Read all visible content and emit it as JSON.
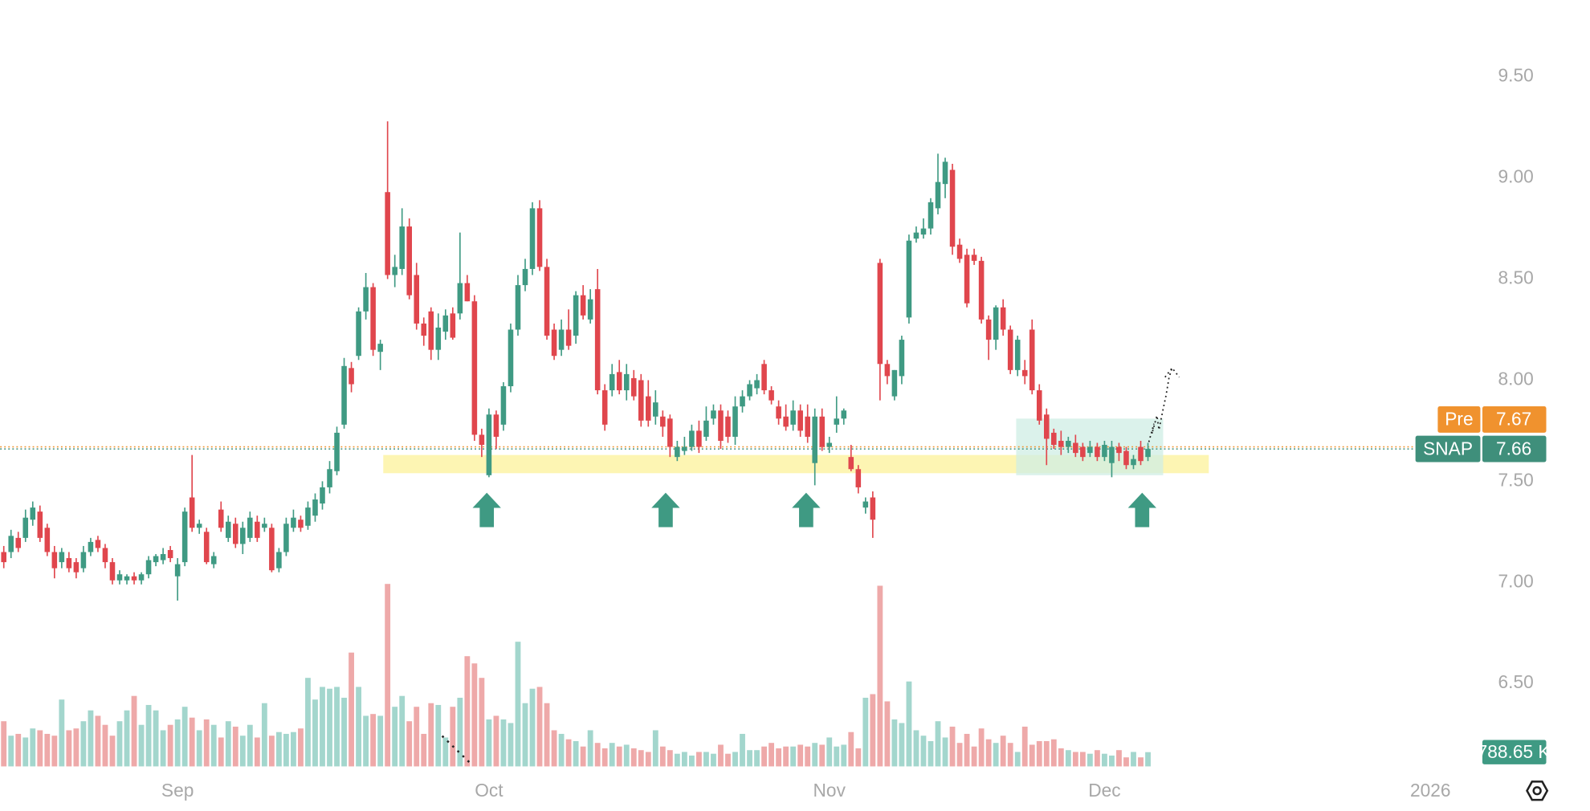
{
  "chart_data": {
    "type": "candlestick",
    "xlim": [
      -0.5,
      202.5
    ],
    "xticks": [
      {
        "value": 24,
        "label": "Sep"
      },
      {
        "value": 67,
        "label": "Oct"
      },
      {
        "value": 114,
        "label": "Nov"
      },
      {
        "value": 152,
        "label": "Dec"
      },
      {
        "value": 197,
        "label": "2026"
      }
    ],
    "ylim": [
      6.09,
      9.88
    ],
    "yticks": [
      {
        "value": 6.5,
        "label": "6.50"
      },
      {
        "value": 7,
        "label": "7.00"
      },
      {
        "value": 7.5,
        "label": "7.50"
      },
      {
        "value": 8,
        "label": "8.00"
      },
      {
        "value": 8.5,
        "label": "8.50"
      },
      {
        "value": 9,
        "label": "9.00"
      },
      {
        "value": 9.5,
        "label": "9.50"
      }
    ],
    "grid": false,
    "up_color": "#3f9a83",
    "down_color": "#e0464d",
    "volume_up_color": "#a3d6cd",
    "volume_down_color": "#eea9a9",
    "ohlc": [
      [
        7.15,
        7.18,
        7.07,
        7.1
      ],
      [
        7.15,
        7.26,
        7.12,
        7.23
      ],
      [
        7.22,
        7.25,
        7.15,
        7.17
      ],
      [
        7.22,
        7.36,
        7.2,
        7.32
      ],
      [
        7.31,
        7.4,
        7.28,
        7.37
      ],
      [
        7.35,
        7.38,
        7.2,
        7.22
      ],
      [
        7.27,
        7.29,
        7.13,
        7.15
      ],
      [
        7.15,
        7.18,
        7.02,
        7.07
      ],
      [
        7.1,
        7.17,
        7.07,
        7.15
      ],
      [
        7.12,
        7.15,
        7.05,
        7.07
      ],
      [
        7.1,
        7.12,
        7.02,
        7.05
      ],
      [
        7.07,
        7.18,
        7.05,
        7.15
      ],
      [
        7.15,
        7.22,
        7.13,
        7.2
      ],
      [
        7.21,
        7.23,
        7.15,
        7.17
      ],
      [
        7.17,
        7.19,
        7.07,
        7.1
      ],
      [
        7.1,
        7.12,
        6.99,
        7.01
      ],
      [
        7.01,
        7.06,
        6.99,
        7.04
      ],
      [
        7.01,
        7.04,
        6.99,
        7.03
      ],
      [
        7.03,
        7.05,
        6.99,
        7.01
      ],
      [
        7.01,
        7.05,
        6.99,
        7.04
      ],
      [
        7.04,
        7.13,
        7.02,
        7.11
      ],
      [
        7.1,
        7.14,
        7.08,
        7.13
      ],
      [
        7.11,
        7.17,
        7.09,
        7.14
      ],
      [
        7.16,
        7.18,
        7.1,
        7.12
      ],
      [
        7.03,
        7.12,
        6.91,
        7.09
      ],
      [
        7.1,
        7.37,
        7.08,
        7.35
      ],
      [
        7.42,
        7.63,
        7.25,
        7.27
      ],
      [
        7.27,
        7.31,
        7.24,
        7.29
      ],
      [
        7.25,
        7.27,
        7.09,
        7.1
      ],
      [
        7.09,
        7.15,
        7.07,
        7.13
      ],
      [
        7.36,
        7.4,
        7.25,
        7.27
      ],
      [
        7.22,
        7.33,
        7.2,
        7.3
      ],
      [
        7.29,
        7.32,
        7.17,
        7.19
      ],
      [
        7.19,
        7.3,
        7.14,
        7.27
      ],
      [
        7.22,
        7.35,
        7.2,
        7.32
      ],
      [
        7.3,
        7.33,
        7.2,
        7.22
      ],
      [
        7.27,
        7.32,
        7.25,
        7.29
      ],
      [
        7.27,
        7.29,
        7.05,
        7.06
      ],
      [
        7.07,
        7.17,
        7.05,
        7.15
      ],
      [
        7.15,
        7.32,
        7.13,
        7.29
      ],
      [
        7.27,
        7.36,
        7.25,
        7.32
      ],
      [
        7.31,
        7.33,
        7.25,
        7.27
      ],
      [
        7.28,
        7.4,
        7.26,
        7.37
      ],
      [
        7.33,
        7.44,
        7.3,
        7.41
      ],
      [
        7.39,
        7.5,
        7.36,
        7.47
      ],
      [
        7.47,
        7.6,
        7.44,
        7.56
      ],
      [
        7.55,
        7.77,
        7.53,
        7.74
      ],
      [
        7.78,
        8.11,
        7.76,
        8.07
      ],
      [
        8.06,
        8.09,
        7.94,
        7.98
      ],
      [
        8.12,
        8.36,
        8.1,
        8.34
      ],
      [
        8.34,
        8.53,
        8.3,
        8.46
      ],
      [
        8.46,
        8.48,
        8.12,
        8.15
      ],
      [
        8.14,
        8.2,
        8.05,
        8.18
      ],
      [
        8.93,
        9.28,
        8.5,
        8.52
      ],
      [
        8.52,
        8.62,
        8.46,
        8.56
      ],
      [
        8.55,
        8.85,
        8.52,
        8.76
      ],
      [
        8.76,
        8.8,
        8.4,
        8.42
      ],
      [
        8.52,
        8.58,
        8.25,
        8.28
      ],
      [
        8.28,
        8.31,
        8.17,
        8.22
      ],
      [
        8.34,
        8.36,
        8.1,
        8.15
      ],
      [
        8.15,
        8.33,
        8.1,
        8.26
      ],
      [
        8.24,
        8.35,
        8.2,
        8.32
      ],
      [
        8.33,
        8.36,
        8.2,
        8.21
      ],
      [
        8.33,
        8.73,
        8.3,
        8.48
      ],
      [
        8.48,
        8.52,
        8.39,
        8.39
      ],
      [
        8.39,
        8.42,
        7.7,
        7.73
      ],
      [
        7.73,
        7.76,
        7.62,
        7.68
      ],
      [
        7.53,
        7.86,
        7.52,
        7.83
      ],
      [
        7.83,
        7.85,
        7.66,
        7.72
      ],
      [
        7.78,
        7.99,
        7.75,
        7.97
      ],
      [
        7.97,
        8.28,
        7.94,
        8.25
      ],
      [
        8.25,
        8.52,
        8.22,
        8.47
      ],
      [
        8.47,
        8.6,
        8.44,
        8.55
      ],
      [
        8.55,
        8.88,
        8.52,
        8.85
      ],
      [
        8.85,
        8.89,
        8.54,
        8.56
      ],
      [
        8.56,
        8.6,
        8.2,
        8.22
      ],
      [
        8.25,
        8.28,
        8.1,
        8.12
      ],
      [
        8.15,
        8.3,
        8.12,
        8.25
      ],
      [
        8.25,
        8.35,
        8.15,
        8.17
      ],
      [
        8.22,
        8.44,
        8.18,
        8.42
      ],
      [
        8.42,
        8.47,
        8.3,
        8.32
      ],
      [
        8.3,
        8.45,
        8.28,
        8.4
      ],
      [
        8.45,
        8.55,
        7.93,
        7.95
      ],
      [
        7.95,
        7.98,
        7.75,
        7.78
      ],
      [
        7.95,
        8.08,
        7.92,
        8.03
      ],
      [
        8.04,
        8.1,
        7.93,
        7.95
      ],
      [
        7.95,
        8.08,
        7.9,
        8.03
      ],
      [
        8.01,
        8.05,
        7.9,
        7.92
      ],
      [
        8.0,
        8.03,
        7.77,
        7.8
      ],
      [
        7.92,
        8.0,
        7.77,
        7.8
      ],
      [
        7.82,
        7.95,
        7.78,
        7.89
      ],
      [
        7.82,
        7.85,
        7.72,
        7.77
      ],
      [
        7.81,
        7.83,
        7.62,
        7.67
      ],
      [
        7.62,
        7.7,
        7.6,
        7.67
      ],
      [
        7.65,
        7.72,
        7.63,
        7.67
      ],
      [
        7.67,
        7.78,
        7.65,
        7.75
      ],
      [
        7.75,
        7.8,
        7.64,
        7.67
      ],
      [
        7.72,
        7.87,
        7.7,
        7.8
      ],
      [
        7.81,
        7.88,
        7.78,
        7.85
      ],
      [
        7.85,
        7.88,
        7.66,
        7.7
      ],
      [
        7.82,
        7.85,
        7.69,
        7.72
      ],
      [
        7.72,
        7.92,
        7.68,
        7.87
      ],
      [
        7.87,
        7.95,
        7.84,
        7.92
      ],
      [
        7.92,
        8.0,
        7.9,
        7.98
      ],
      [
        7.96,
        8.03,
        7.93,
        8.0
      ],
      [
        8.08,
        8.1,
        7.93,
        7.95
      ],
      [
        7.95,
        7.97,
        7.88,
        7.9
      ],
      [
        7.87,
        7.9,
        7.78,
        7.81
      ],
      [
        7.82,
        7.88,
        7.75,
        7.77
      ],
      [
        7.78,
        7.9,
        7.75,
        7.85
      ],
      [
        7.85,
        7.88,
        7.72,
        7.75
      ],
      [
        7.82,
        7.88,
        7.69,
        7.72
      ],
      [
        7.59,
        7.86,
        7.48,
        7.82
      ],
      [
        7.82,
        7.86,
        7.65,
        7.67
      ],
      [
        7.67,
        7.72,
        7.64,
        7.69
      ],
      [
        7.78,
        7.92,
        7.74,
        7.81
      ],
      [
        7.81,
        7.86,
        7.78,
        7.85
      ],
      [
        7.62,
        7.68,
        7.55,
        7.56
      ],
      [
        7.56,
        7.58,
        7.44,
        7.47
      ],
      [
        7.37,
        7.42,
        7.34,
        7.4
      ],
      [
        7.42,
        7.45,
        7.22,
        7.31
      ],
      [
        8.58,
        8.6,
        7.9,
        8.08
      ],
      [
        8.08,
        8.1,
        7.98,
        8.02
      ],
      [
        7.92,
        8.05,
        7.9,
        8.05
      ],
      [
        8.02,
        8.22,
        7.98,
        8.2
      ],
      [
        8.31,
        8.72,
        8.28,
        8.69
      ],
      [
        8.7,
        8.76,
        8.68,
        8.73
      ],
      [
        8.72,
        8.8,
        8.7,
        8.75
      ],
      [
        8.75,
        8.9,
        8.72,
        8.88
      ],
      [
        8.85,
        9.12,
        8.82,
        8.98
      ],
      [
        8.97,
        9.1,
        8.9,
        9.08
      ],
      [
        9.04,
        9.07,
        8.62,
        8.66
      ],
      [
        8.67,
        8.7,
        8.58,
        8.6
      ],
      [
        8.62,
        8.65,
        8.36,
        8.38
      ],
      [
        8.62,
        8.65,
        8.57,
        8.59
      ],
      [
        8.59,
        8.61,
        8.28,
        8.3
      ],
      [
        8.3,
        8.32,
        8.1,
        8.2
      ],
      [
        8.2,
        8.37,
        8.15,
        8.36
      ],
      [
        8.36,
        8.4,
        8.22,
        8.25
      ],
      [
        8.25,
        8.27,
        8.03,
        8.05
      ],
      [
        8.05,
        8.22,
        8.02,
        8.2
      ],
      [
        8.05,
        8.1,
        7.98,
        8.02
      ],
      [
        8.25,
        8.3,
        7.93,
        7.95
      ],
      [
        7.95,
        7.98,
        7.78,
        7.8
      ],
      [
        7.83,
        7.86,
        7.58,
        7.71
      ],
      [
        7.74,
        7.76,
        7.66,
        7.68
      ],
      [
        7.7,
        7.75,
        7.63,
        7.67
      ],
      [
        7.67,
        7.72,
        7.64,
        7.7
      ],
      [
        7.69,
        7.73,
        7.62,
        7.64
      ],
      [
        7.67,
        7.69,
        7.6,
        7.62
      ],
      [
        7.64,
        7.7,
        7.62,
        7.67
      ],
      [
        7.67,
        7.69,
        7.6,
        7.62
      ],
      [
        7.62,
        7.7,
        7.6,
        7.68
      ],
      [
        7.59,
        7.7,
        7.52,
        7.67
      ],
      [
        7.67,
        7.69,
        7.6,
        7.64
      ],
      [
        7.65,
        7.67,
        7.56,
        7.58
      ],
      [
        7.58,
        7.63,
        7.56,
        7.61
      ],
      [
        7.67,
        7.7,
        7.58,
        7.6
      ],
      [
        7.62,
        7.69,
        7.6,
        7.66
      ]
    ],
    "volumes": [
      2500,
      1700,
      1800,
      1600,
      2100,
      2000,
      1800,
      1700,
      3700,
      2000,
      2100,
      2500,
      3100,
      2800,
      2300,
      1700,
      2500,
      3100,
      3900,
      2300,
      3400,
      3100,
      2000,
      2300,
      2600,
      3300,
      2700,
      2000,
      2600,
      2300,
      1600,
      2500,
      2200,
      1700,
      2300,
      1600,
      3500,
      1700,
      1900,
      1800,
      1900,
      2100,
      4900,
      3700,
      4400,
      4300,
      4400,
      3800,
      6300,
      4400,
      2800,
      2900,
      2800,
      10100,
      3300,
      3900,
      2500,
      3300,
      1800,
      3500,
      3400,
      1600,
      3300,
      3800,
      6100,
      5700,
      4900,
      2600,
      2800,
      2600,
      2400,
      6900,
      3500,
      4300,
      4400,
      3500,
      2000,
      1800,
      1500,
      1400,
      1100,
      2000,
      1300,
      1000,
      1300,
      1100,
      1200,
      1000,
      900,
      800,
      2000,
      1100,
      900,
      700,
      800,
      600,
      800,
      800,
      700,
      1200,
      700,
      800,
      1800,
      900,
      900,
      1100,
      1300,
      1000,
      1100,
      1100,
      1200,
      1100,
      1300,
      1200,
      1600,
      1100,
      1200,
      1900,
      1000,
      3800,
      4000,
      10000,
      3600,
      2600,
      2400,
      4700,
      2000,
      1700,
      1400,
      2500,
      1600,
      2200,
      1300,
      1800,
      1100,
      2100,
      1500,
      1300,
      1700,
      1300,
      800,
      2200,
      1200,
      1400,
      1400,
      1500,
      1000,
      900,
      800,
      800,
      700,
      900,
      700,
      600,
      900,
      500,
      800,
      500,
      788.65
    ],
    "last_volume": {
      "value": 788.65,
      "label": "788.65 K",
      "color": "#3f9a83"
    },
    "price_tags": [
      {
        "name": "Pre",
        "value": 7.67,
        "color": "#f0922e"
      },
      {
        "name": "SNAP",
        "value": 7.66,
        "color": "#3f8f7b"
      }
    ],
    "support_zone": {
      "xlim": [
        52.4,
        166.4
      ],
      "ylim": [
        7.54,
        7.63
      ],
      "color": "#fdf3a6"
    },
    "consolidation_box": {
      "xlim": [
        139.8,
        160.1
      ],
      "ylim": [
        7.53,
        7.81
      ],
      "color": "#cfeee4"
    },
    "signal_arrows": [
      66.7,
      91.4,
      110.8,
      157.2
    ],
    "arrow_color": "#3f9a83"
  }
}
